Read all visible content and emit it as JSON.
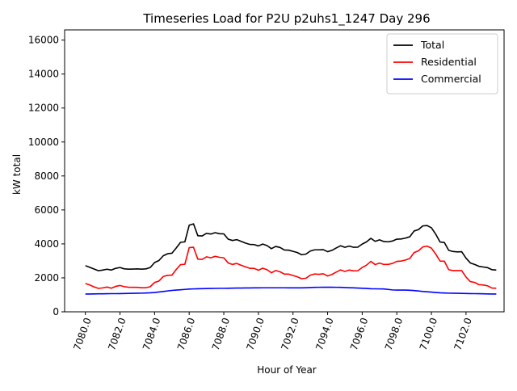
{
  "chart_data": {
    "type": "line",
    "title": "Timeseries Load for P2U p2uhs1_1247  Day 296",
    "xlabel": "Hour of Year",
    "ylabel": "kW total",
    "xlim": [
      7078.8,
      7104.2
    ],
    "ylim": [
      0,
      16600
    ],
    "xticks": [
      7080,
      7082,
      7084,
      7086,
      7088,
      7090,
      7092,
      7094,
      7096,
      7098,
      7100,
      7102
    ],
    "xtick_labels": [
      "7080.0",
      "7082.0",
      "7084.0",
      "7086.0",
      "7088.0",
      "7090.0",
      "7092.0",
      "7094.0",
      "7096.0",
      "7098.0",
      "7100.0",
      "7102.0"
    ],
    "yticks": [
      0,
      2000,
      4000,
      6000,
      8000,
      10000,
      12000,
      14000,
      16000
    ],
    "ytick_labels": [
      "0",
      "2000",
      "4000",
      "6000",
      "8000",
      "10000",
      "12000",
      "14000",
      "16000"
    ],
    "grid": false,
    "legend_position": "top-right",
    "x_start": 7080.0,
    "x_step": 0.25,
    "series": [
      {
        "name": "Total",
        "color": "#000000",
        "values": [
          2720,
          2620,
          2520,
          2420,
          2460,
          2510,
          2460,
          2560,
          2610,
          2530,
          2510,
          2520,
          2530,
          2510,
          2530,
          2610,
          2900,
          3020,
          3300,
          3420,
          3450,
          3760,
          4090,
          4120,
          5100,
          5180,
          4480,
          4470,
          4620,
          4580,
          4660,
          4600,
          4590,
          4280,
          4200,
          4250,
          4150,
          4050,
          3970,
          3960,
          3880,
          3990,
          3900,
          3720,
          3850,
          3790,
          3640,
          3630,
          3560,
          3490,
          3360,
          3400,
          3580,
          3650,
          3650,
          3660,
          3540,
          3620,
          3760,
          3890,
          3800,
          3870,
          3800,
          3810,
          3990,
          4120,
          4330,
          4150,
          4240,
          4140,
          4120,
          4170,
          4280,
          4290,
          4340,
          4420,
          4760,
          4840,
          5060,
          5080,
          4950,
          4570,
          4110,
          4080,
          3620,
          3550,
          3530,
          3540,
          3160,
          2880,
          2790,
          2680,
          2640,
          2600,
          2480,
          2460
        ]
      },
      {
        "name": "Residential",
        "color": "#ff0000",
        "values": [
          1670,
          1580,
          1470,
          1380,
          1410,
          1460,
          1390,
          1500,
          1550,
          1480,
          1450,
          1440,
          1440,
          1420,
          1420,
          1480,
          1730,
          1810,
          2080,
          2150,
          2160,
          2490,
          2780,
          2800,
          3780,
          3800,
          3100,
          3090,
          3240,
          3180,
          3270,
          3210,
          3180,
          2880,
          2790,
          2850,
          2740,
          2650,
          2560,
          2560,
          2450,
          2570,
          2480,
          2300,
          2430,
          2360,
          2220,
          2220,
          2140,
          2060,
          1950,
          1980,
          2160,
          2230,
          2210,
          2240,
          2110,
          2200,
          2340,
          2470,
          2380,
          2460,
          2410,
          2420,
          2610,
          2750,
          2970,
          2780,
          2870,
          2790,
          2790,
          2850,
          2970,
          2990,
          3050,
          3140,
          3490,
          3590,
          3820,
          3870,
          3750,
          3400,
          2990,
          2980,
          2480,
          2430,
          2430,
          2430,
          2050,
          1780,
          1730,
          1600,
          1580,
          1530,
          1400,
          1390
        ]
      },
      {
        "name": "Commercial",
        "color": "#0000ff",
        "values": [
          1050,
          1050,
          1055,
          1060,
          1060,
          1065,
          1070,
          1070,
          1075,
          1080,
          1085,
          1090,
          1095,
          1100,
          1110,
          1120,
          1140,
          1170,
          1200,
          1230,
          1260,
          1280,
          1300,
          1320,
          1340,
          1350,
          1360,
          1365,
          1370,
          1375,
          1380,
          1385,
          1385,
          1390,
          1395,
          1400,
          1400,
          1405,
          1405,
          1410,
          1410,
          1415,
          1415,
          1415,
          1415,
          1415,
          1415,
          1410,
          1410,
          1410,
          1410,
          1420,
          1430,
          1440,
          1445,
          1450,
          1450,
          1450,
          1445,
          1440,
          1430,
          1420,
          1410,
          1400,
          1390,
          1375,
          1360,
          1355,
          1350,
          1345,
          1320,
          1290,
          1280,
          1280,
          1280,
          1270,
          1250,
          1230,
          1200,
          1180,
          1160,
          1140,
          1120,
          1110,
          1100,
          1095,
          1090,
          1085,
          1080,
          1075,
          1070,
          1065,
          1060,
          1055,
          1050,
          1050
        ]
      }
    ]
  }
}
